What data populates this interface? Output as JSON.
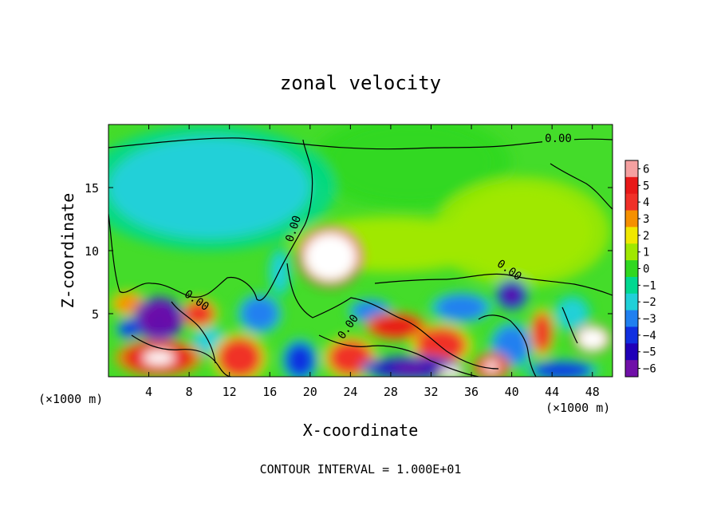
{
  "chart_data": {
    "type": "heatmap",
    "title": "zonal velocity",
    "xlabel": "X-coordinate",
    "ylabel": "Z-coordinate",
    "x_unit_left": "(×1000 m)",
    "x_unit_right": "(×1000 m)",
    "xlim": [
      0,
      50
    ],
    "ylim": [
      0,
      20
    ],
    "x_ticks": [
      4,
      8,
      12,
      16,
      20,
      24,
      28,
      32,
      36,
      40,
      44,
      48
    ],
    "y_ticks": [
      5,
      10,
      15
    ],
    "colorbar": {
      "ticks": [
        6,
        5,
        4,
        3,
        2,
        1,
        0,
        -1,
        -2,
        -3,
        -4,
        -5,
        -6
      ],
      "tick_labels": [
        "6",
        "5",
        "4",
        "3",
        "2",
        "1",
        "0",
        "−1",
        "−2",
        "−3",
        "−4",
        "−5",
        "−6"
      ],
      "colors": [
        "#f5a0a0",
        "#e81818",
        "#f03028",
        "#f59000",
        "#f0e800",
        "#a0e800",
        "#30d820",
        "#00d890",
        "#20d0d8",
        "#2080f0",
        "#1030e0",
        "#2000b8",
        "#7010a8"
      ]
    },
    "contour_label": "0.00",
    "footer": "CONTOUR INTERVAL = 1.000E+01",
    "blobs": [
      {
        "x": 22,
        "z": 9.5,
        "rx": 2.6,
        "rz": 1.9,
        "v": 6.5
      },
      {
        "x": 10,
        "z": 15,
        "rx": 10,
        "rz": 4,
        "v": -1.6
      },
      {
        "x": 41,
        "z": 11.5,
        "rx": 7,
        "rz": 3.5,
        "v": 1.3
      },
      {
        "x": 28,
        "z": 10.5,
        "rx": 8,
        "rz": 1.8,
        "v": 1.2
      },
      {
        "x": 30,
        "z": 17,
        "rx": 8,
        "rz": 3,
        "v": 0.3
      },
      {
        "x": 5,
        "z": 4.6,
        "rx": 2.0,
        "rz": 1.4,
        "v": -6
      },
      {
        "x": 6,
        "z": 4.3,
        "rx": 1.2,
        "rz": 0.6,
        "v": -9
      },
      {
        "x": 2,
        "z": 5.8,
        "rx": 1.4,
        "rz": 0.8,
        "v": 3
      },
      {
        "x": 9,
        "z": 5,
        "rx": 1.5,
        "rz": 1.0,
        "v": 4
      },
      {
        "x": 5,
        "z": 1.5,
        "rx": 3.5,
        "rz": 1.2,
        "v": 5
      },
      {
        "x": 13,
        "z": 1.5,
        "rx": 2.2,
        "rz": 1.6,
        "v": 3.5
      },
      {
        "x": 15,
        "z": 5,
        "rx": 1.8,
        "rz": 1.3,
        "v": -3
      },
      {
        "x": 10,
        "z": 2.8,
        "rx": 1.5,
        "rz": 1.0,
        "v": -2.5
      },
      {
        "x": 19,
        "z": 1.3,
        "rx": 1.5,
        "rz": 1.4,
        "v": -4
      },
      {
        "x": 17,
        "z": 8.3,
        "rx": 0.9,
        "rz": 1.6,
        "v": -2.5
      },
      {
        "x": 26,
        "z": 5.2,
        "rx": 1.8,
        "rz": 0.8,
        "v": -3
      },
      {
        "x": 28.5,
        "z": 4.0,
        "rx": 2.5,
        "rz": 0.9,
        "v": 4.5
      },
      {
        "x": 24,
        "z": 1.5,
        "rx": 2.2,
        "rz": 1.4,
        "v": 4
      },
      {
        "x": 33,
        "z": 2.5,
        "rx": 2.5,
        "rz": 1.4,
        "v": 3.5
      },
      {
        "x": 30,
        "z": 0.7,
        "rx": 4,
        "rz": 0.8,
        "v": -5
      },
      {
        "x": 35,
        "z": 5.5,
        "rx": 2.5,
        "rz": 1.0,
        "v": -3
      },
      {
        "x": 40,
        "z": 6.5,
        "rx": 1.3,
        "rz": 1.0,
        "v": -5
      },
      {
        "x": 40,
        "z": 2.5,
        "rx": 1.8,
        "rz": 1.5,
        "v": -3.5
      },
      {
        "x": 38,
        "z": 0.8,
        "rx": 1.5,
        "rz": 0.9,
        "v": 5
      },
      {
        "x": 43,
        "z": 3.5,
        "rx": 1.0,
        "rz": 1.6,
        "v": 4
      },
      {
        "x": 46,
        "z": 5,
        "rx": 1.5,
        "rz": 1.2,
        "v": -2.5
      },
      {
        "x": 48,
        "z": 3,
        "rx": 1.5,
        "rz": 0.9,
        "v": 6.5
      },
      {
        "x": 45,
        "z": 0.5,
        "rx": 3,
        "rz": 0.7,
        "v": -4
      },
      {
        "x": 34,
        "z": 0.3,
        "rx": 1.2,
        "rz": 0.4,
        "v": 8
      },
      {
        "x": 2,
        "z": 3.8,
        "rx": 1.0,
        "rz": 0.7,
        "v": -4
      }
    ]
  }
}
